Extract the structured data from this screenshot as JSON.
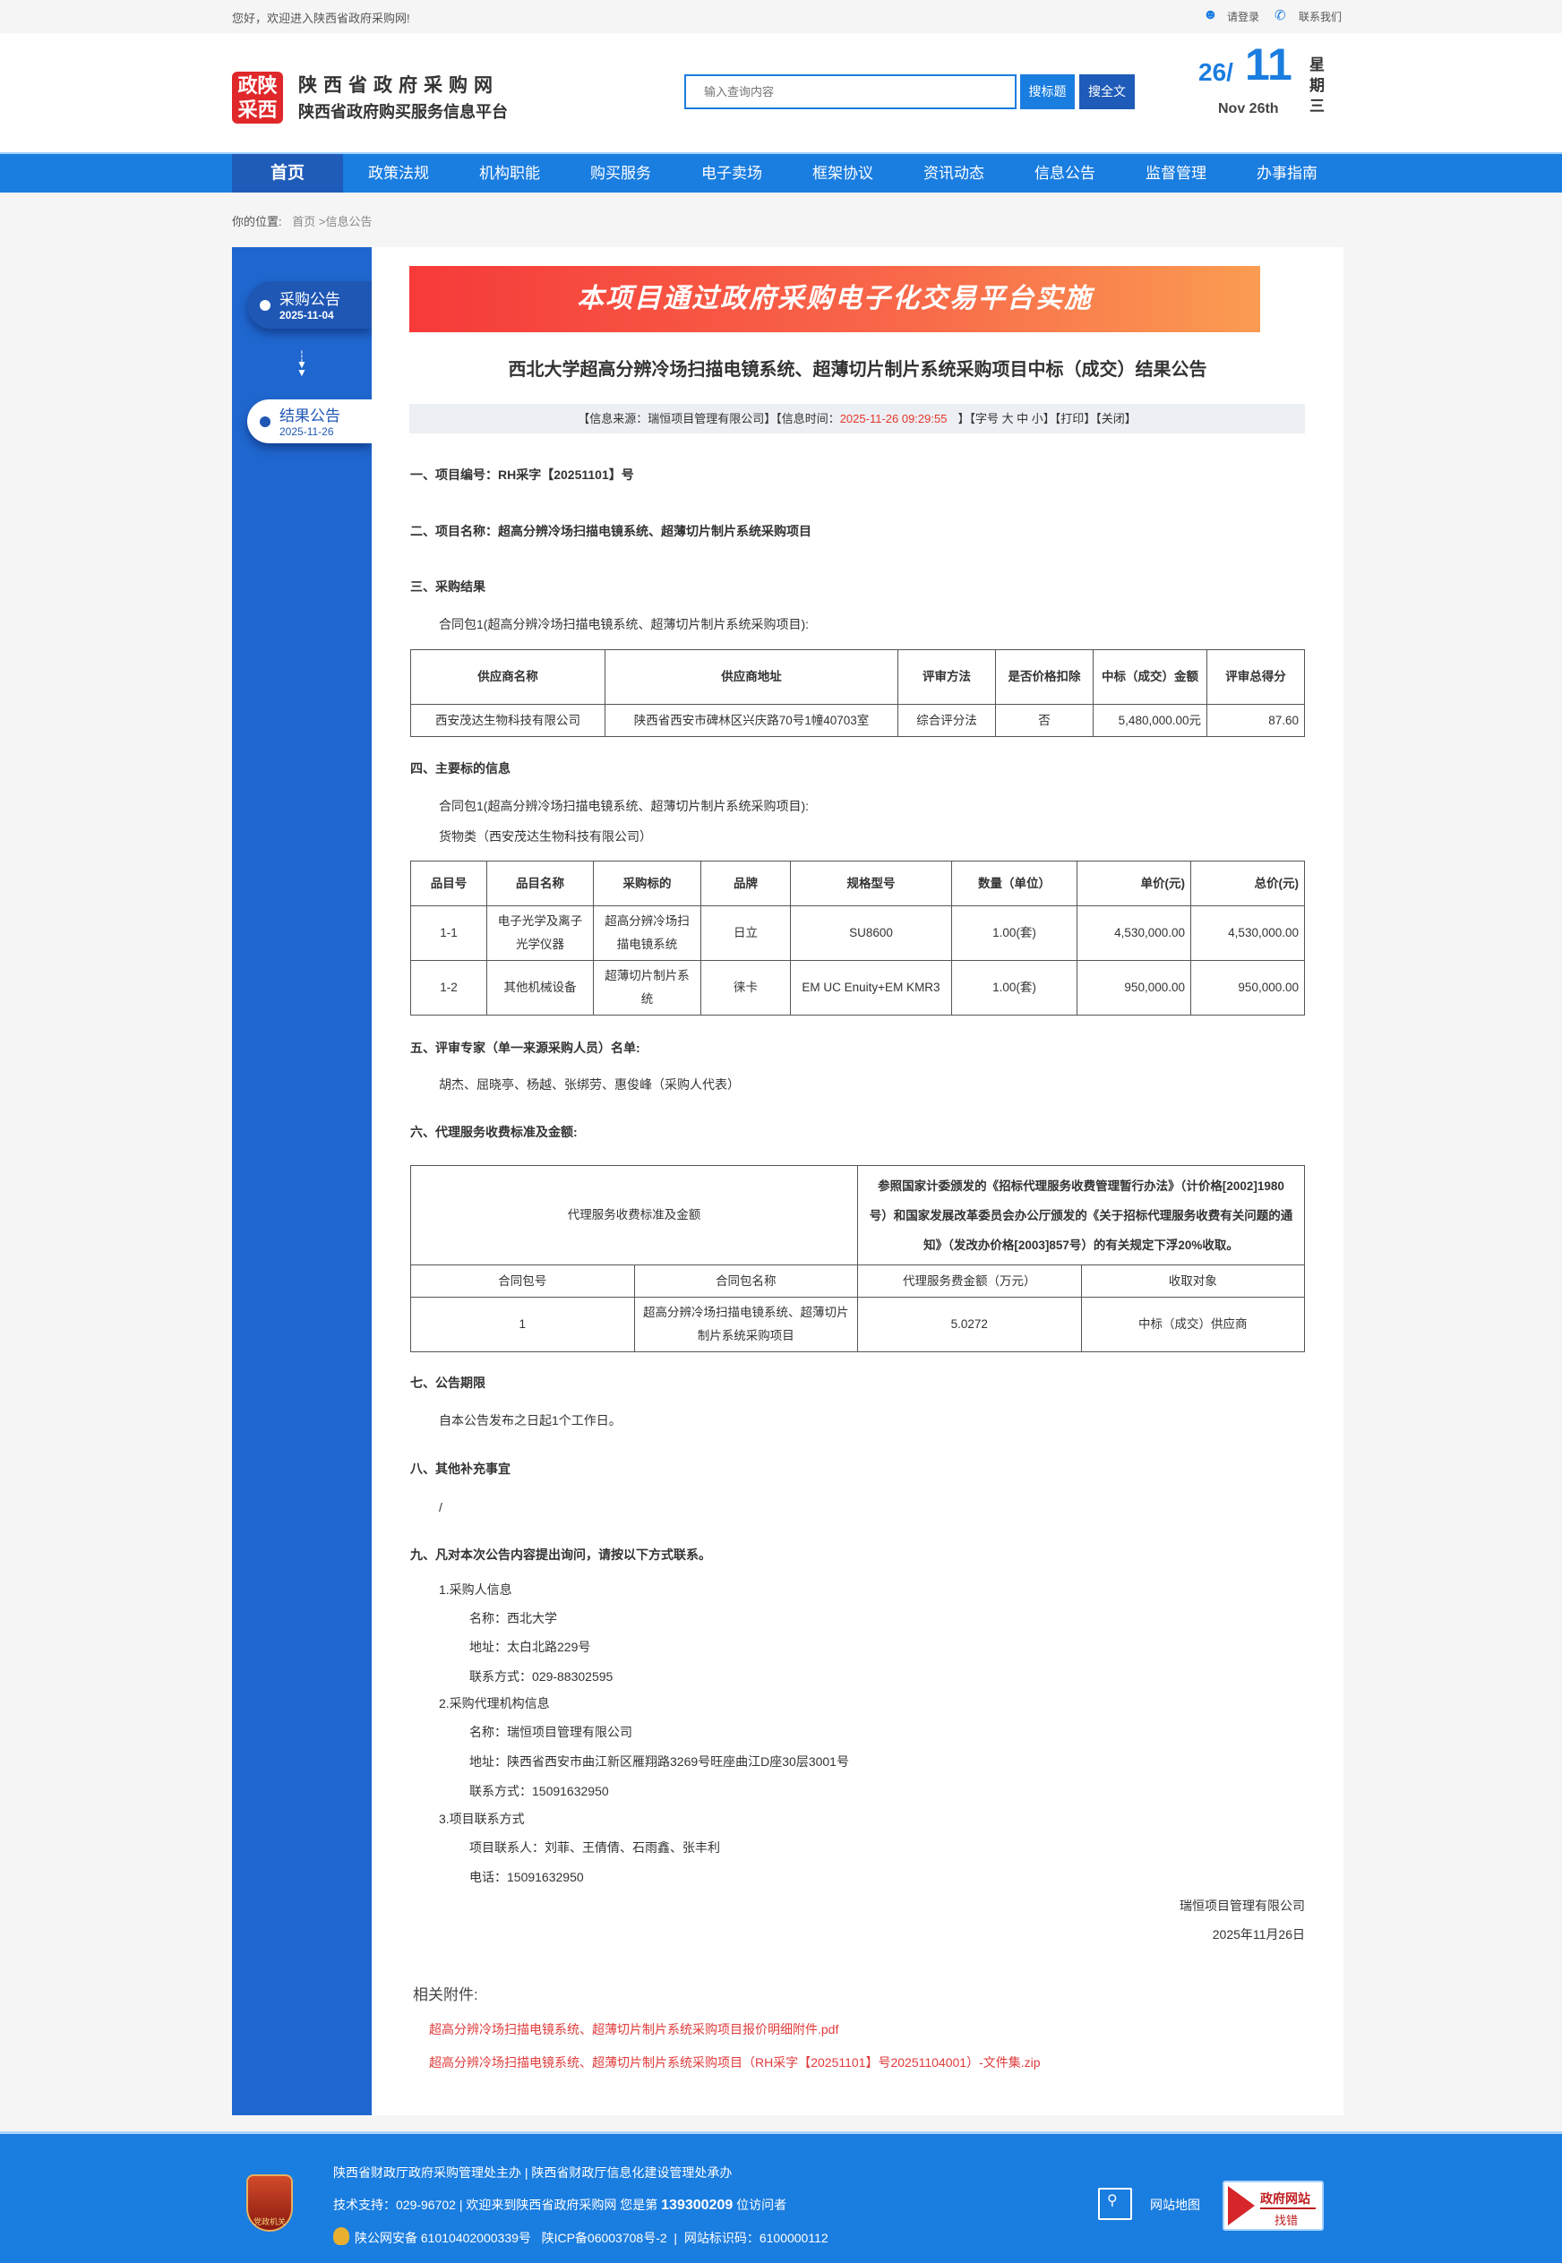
{
  "topbar": {
    "welcome": "您好，欢迎进入陕西省政府采购网!",
    "login": "请登录",
    "contact": "联系我们"
  },
  "header": {
    "logo_text": "政陕采西",
    "site_name": "陕西省政府采购网",
    "site_sub": "陕西省政府购买服务信息平台",
    "search_placeholder": "输入查询内容",
    "search_title_btn": "搜标题",
    "search_full_btn": "搜全文",
    "date_day": "26/",
    "date_month": "11",
    "date_en": "Nov 26th",
    "weekday": [
      "星",
      "期",
      "三"
    ]
  },
  "nav": [
    "首页",
    "政策法规",
    "机构职能",
    "购买服务",
    "电子卖场",
    "框架协议",
    "资讯动态",
    "信息公告",
    "监督管理",
    "办事指南"
  ],
  "breadcrumb": {
    "label": "你的位置:",
    "home": "首页",
    "sep": " >",
    "current": "信息公告"
  },
  "sidebar": [
    {
      "title": "采购公告",
      "date": "2025-11-04"
    },
    {
      "title": "结果公告",
      "date": "2025-11-26"
    }
  ],
  "colors": {
    "brand": "#1a7de0",
    "accent_red": "#e8372c",
    "link_red": "#e03b3b"
  },
  "article": {
    "banner": "本项目通过政府采购电子化交易平台实施",
    "title": "西北大学超高分辨冷场扫描电镜系统、超薄切片制片系统采购项目中标（成交）结果公告",
    "meta": {
      "source": "【信息来源：瑞恒项目管理有限公司】【信息时间：",
      "time": "2025-11-26 09:29:55",
      "rest": "】【字号 大 中 小】【打印】【关闭】"
    },
    "s1": "一、项目编号：RH采字【20251101】号",
    "s2": "二、项目名称：超高分辨冷场扫描电镜系统、超薄切片制片系统采购项目",
    "s3": "三、采购结果",
    "pkg": "合同包1(超高分辨冷场扫描电镜系统、超薄切片制片系统采购项目):",
    "t1": {
      "headers": [
        "供应商名称",
        "供应商地址",
        "评审方法",
        "是否价格扣除",
        "中标（成交）金额",
        "评审总得分"
      ],
      "row": [
        "西安茂达生物科技有限公司",
        "陕西省西安市碑林区兴庆路70号1幢40703室",
        "综合评分法",
        "否",
        "5,480,000.00元",
        "87.60"
      ]
    },
    "s4": "四、主要标的信息",
    "goods": "货物类（西安茂达生物科技有限公司）",
    "t2": {
      "headers": [
        "品目号",
        "品目名称",
        "采购标的",
        "品牌",
        "规格型号",
        "数量（单位）",
        "单价(元)",
        "总价(元)"
      ],
      "rows": [
        [
          "1-1",
          "电子光学及离子光学仪器",
          "超高分辨冷场扫描电镜系统",
          "日立",
          "SU8600",
          "1.00(套)",
          "4,530,000.00",
          "4,530,000.00"
        ],
        [
          "1-2",
          "其他机械设备",
          "超薄切片制片系统",
          "徕卡",
          "EM UC Enuity+EM KMR3",
          "1.00(套)",
          "950,000.00",
          "950,000.00"
        ]
      ]
    },
    "s5": "五、评审专家（单一来源采购人员）名单:",
    "experts": "胡杰、屈晓亭、杨越、张绑劳、惠俊峰（采购人代表）",
    "s6": "六、代理服务收费标准及金额:",
    "t3": {
      "label": "代理服务收费标准及金额",
      "desc": "参照国家计委颁发的《招标代理服务收费管理暂行办法》（计价格[2002]1980号）和国家发展改革委员会办公厅颁发的《关于招标代理服务收费有关问题的通知》（发改办价格[2003]857号）的有关规定下浮20%收取。",
      "headers": [
        "合同包号",
        "合同包名称",
        "代理服务费金额（万元）",
        "收取对象"
      ],
      "row": [
        "1",
        "超高分辨冷场扫描电镜系统、超薄切片制片系统采购项目",
        "5.0272",
        "中标（成交）供应商"
      ]
    },
    "s7": "七、公告期限",
    "period": "自本公告发布之日起1个工作日。",
    "s8": "八、其他补充事宜",
    "other": "/",
    "s9": "九、凡对本次公告内容提出询问，请按以下方式联系。",
    "contacts": [
      "1.采购人信息",
      "名称：西北大学",
      "地址：太白北路229号",
      "联系方式：029-88302595",
      "2.采购代理机构信息",
      "名称：瑞恒项目管理有限公司",
      "地址：陕西省西安市曲江新区雁翔路3269号旺座曲江D座30层3001号",
      "联系方式：15091632950",
      "3.项目联系方式",
      "项目联系人：刘菲、王倩倩、石雨鑫、张丰利",
      "电话：15091632950"
    ],
    "sign_org": "瑞恒项目管理有限公司",
    "sign_date": "2025年11月26日",
    "attach_label": "相关附件:",
    "attachments": [
      "超高分辨冷场扫描电镜系统、超薄切片制片系统采购项目报价明细附件.pdf",
      "超高分辨冷场扫描电镜系统、超薄切片制片系统采购项目（RH采字【20251101】号20251104001）-文件集.zip"
    ]
  },
  "footer": {
    "line1": "陕西省财政厅政府采购管理处主办 | 陕西省财政厅信息化建设管理处承办",
    "line2a": "技术支持：029-96702 | 欢迎来到陕西省政府采购网 您是第 ",
    "visits": "139300209",
    "line2b": " 位访问者",
    "line3": "陕公网安备 61010402000339号   陕ICP备06003708号-2  |  网站标识码：6100000112",
    "emblem": "党政机关",
    "sitemap": "网站地图",
    "finderr_top": "政府网站",
    "finderr_bottom": "找错"
  }
}
